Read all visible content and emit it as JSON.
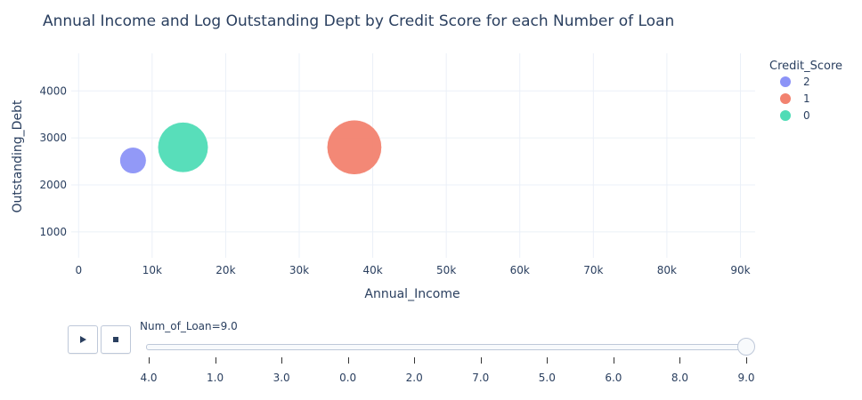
{
  "chart_data": {
    "type": "scatter",
    "title": "Annual Income and Log Outstanding Dept by Credit Score for each Number of Loan",
    "xlabel": "Annual_Income",
    "ylabel": "Outstanding_Debt",
    "xlim": [
      -1000,
      92000
    ],
    "ylim": [
      450,
      4800
    ],
    "x_ticks": [
      0,
      10000,
      20000,
      30000,
      40000,
      50000,
      60000,
      70000,
      80000,
      90000
    ],
    "x_tick_labels": [
      "0",
      "10k",
      "20k",
      "30k",
      "40k",
      "50k",
      "60k",
      "70k",
      "80k",
      "90k"
    ],
    "y_ticks": [
      1000,
      2000,
      3000,
      4000
    ],
    "y_tick_labels": [
      "1000",
      "2000",
      "3000",
      "4000"
    ],
    "grid": true,
    "legend": {
      "title": "Credit_Score",
      "placement": "right",
      "entries": [
        {
          "name": "2",
          "color": "#8c93f7"
        },
        {
          "name": "1",
          "color": "#f2826f"
        },
        {
          "name": "0",
          "color": "#4fdcb6"
        }
      ]
    },
    "series": [
      {
        "name": "2",
        "color": "#8c93f7",
        "points": [
          {
            "x": 7400,
            "y": 2520,
            "size": 0.24
          }
        ]
      },
      {
        "name": "1",
        "color": "#f2826f",
        "points": [
          {
            "x": 37500,
            "y": 2800,
            "size": 0.9
          }
        ]
      },
      {
        "name": "0",
        "color": "#4fdcb6",
        "points": [
          {
            "x": 14200,
            "y": 2800,
            "size": 0.8
          }
        ]
      }
    ]
  },
  "animation": {
    "current_label": "Num_of_Loan=9.0",
    "steps": [
      "4.0",
      "1.0",
      "3.0",
      "0.0",
      "2.0",
      "7.0",
      "5.0",
      "6.0",
      "8.0",
      "9.0"
    ],
    "active_index": 9,
    "play_icon": "play-icon",
    "stop_icon": "stop-icon"
  }
}
